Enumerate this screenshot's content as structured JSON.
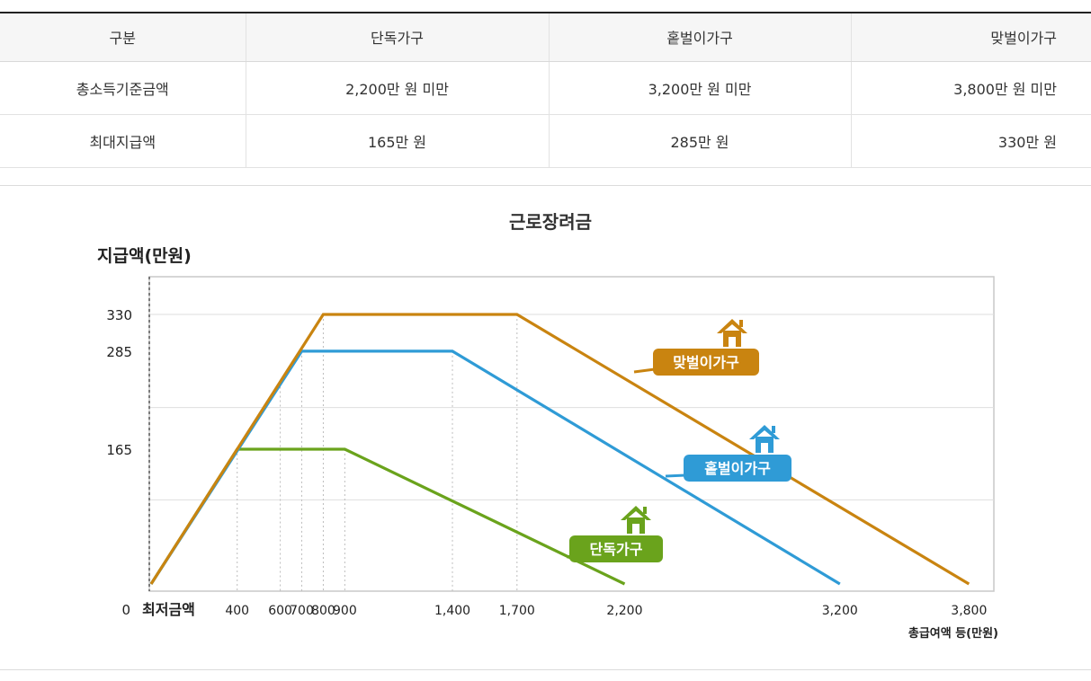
{
  "table": {
    "headers": [
      "구분",
      "단독가구",
      "홑벌이가구",
      "맞벌이가구"
    ],
    "rows": [
      [
        "총소득기준금액",
        "2,200만 원 미만",
        "3,200만 원 미만",
        "3,800만 원 미만"
      ],
      [
        "최대지급액",
        "165만 원",
        "285만 원",
        "330만 원"
      ]
    ]
  },
  "chart_data": {
    "type": "line",
    "title": "근로장려금",
    "ylabel": "지급액(만원)",
    "xlabel": "총급여액 등(만원)",
    "x_origin_label": "최저금액",
    "x_ticks": [
      {
        "value": 400,
        "label": "400"
      },
      {
        "value": 600,
        "label": "600"
      },
      {
        "value": 700,
        "label": "700"
      },
      {
        "value": 800,
        "label": "800"
      },
      {
        "value": 900,
        "label": "900"
      },
      {
        "value": 1400,
        "label": "1,400"
      },
      {
        "value": 1700,
        "label": "1,700"
      },
      {
        "value": 2200,
        "label": "2,200"
      },
      {
        "value": 3200,
        "label": "3,200"
      },
      {
        "value": 3800,
        "label": "3,800"
      }
    ],
    "y_ticks": [
      {
        "value": 0,
        "label": "0"
      },
      {
        "value": 165,
        "label": "165"
      },
      {
        "value": 285,
        "label": "285"
      },
      {
        "value": 330,
        "label": "330"
      }
    ],
    "series": [
      {
        "name": "단독가구",
        "color": "#6aa31c",
        "x": [
          0,
          400,
          900,
          2200
        ],
        "y": [
          0,
          165,
          165,
          0
        ]
      },
      {
        "name": "홑벌이가구",
        "color": "#2f9bd6",
        "x": [
          0,
          700,
          1400,
          3200
        ],
        "y": [
          0,
          285,
          285,
          0
        ]
      },
      {
        "name": "맞벌이가구",
        "color": "#c98410",
        "x": [
          0,
          800,
          1700,
          3800
        ],
        "y": [
          0,
          330,
          330,
          0
        ]
      }
    ],
    "legend": "inline-house-labels"
  }
}
